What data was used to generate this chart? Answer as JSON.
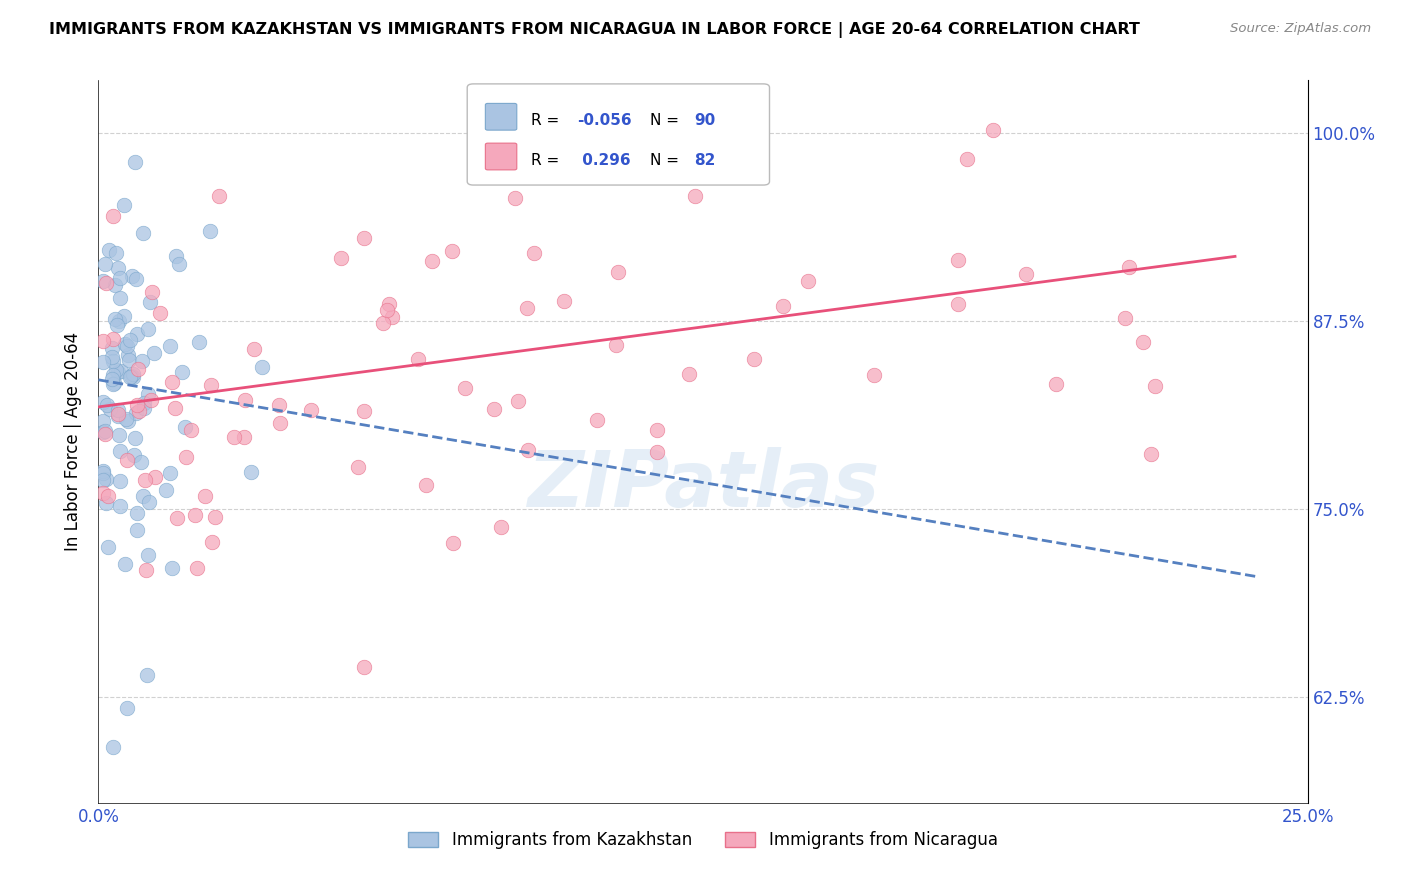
{
  "title": "IMMIGRANTS FROM KAZAKHSTAN VS IMMIGRANTS FROM NICARAGUA IN LABOR FORCE | AGE 20-64 CORRELATION CHART",
  "source": "Source: ZipAtlas.com",
  "ylabel": "In Labor Force | Age 20-64",
  "xlim": [
    0.0,
    0.25
  ],
  "ylim": [
    0.555,
    1.035
  ],
  "yticks": [
    0.625,
    0.75,
    0.875,
    1.0
  ],
  "yticklabels_right": [
    "62.5%",
    "75.0%",
    "87.5%",
    "100.0%"
  ],
  "xticks": [
    0.0,
    0.05,
    0.1,
    0.15,
    0.2,
    0.25
  ],
  "xticklabels": [
    "0.0%",
    "",
    "",
    "",
    "",
    "25.0%"
  ],
  "kazakhstan_color": "#aac4e2",
  "nicaragua_color": "#f5a8bc",
  "kazakhstan_edge": "#7ba7cc",
  "nicaragua_edge": "#e8708a",
  "trend_kaz_color": "#5580c0",
  "trend_nic_color": "#e8507a",
  "R_kaz": -0.056,
  "N_kaz": 90,
  "R_nic": 0.296,
  "N_nic": 82,
  "legend_label_kaz": "Immigrants from Kazakhstan",
  "legend_label_nic": "Immigrants from Nicaragua",
  "watermark": "ZIPatlas",
  "info_box_kaz_color": "#aac4e2",
  "info_box_nic_color": "#f5a8bc"
}
